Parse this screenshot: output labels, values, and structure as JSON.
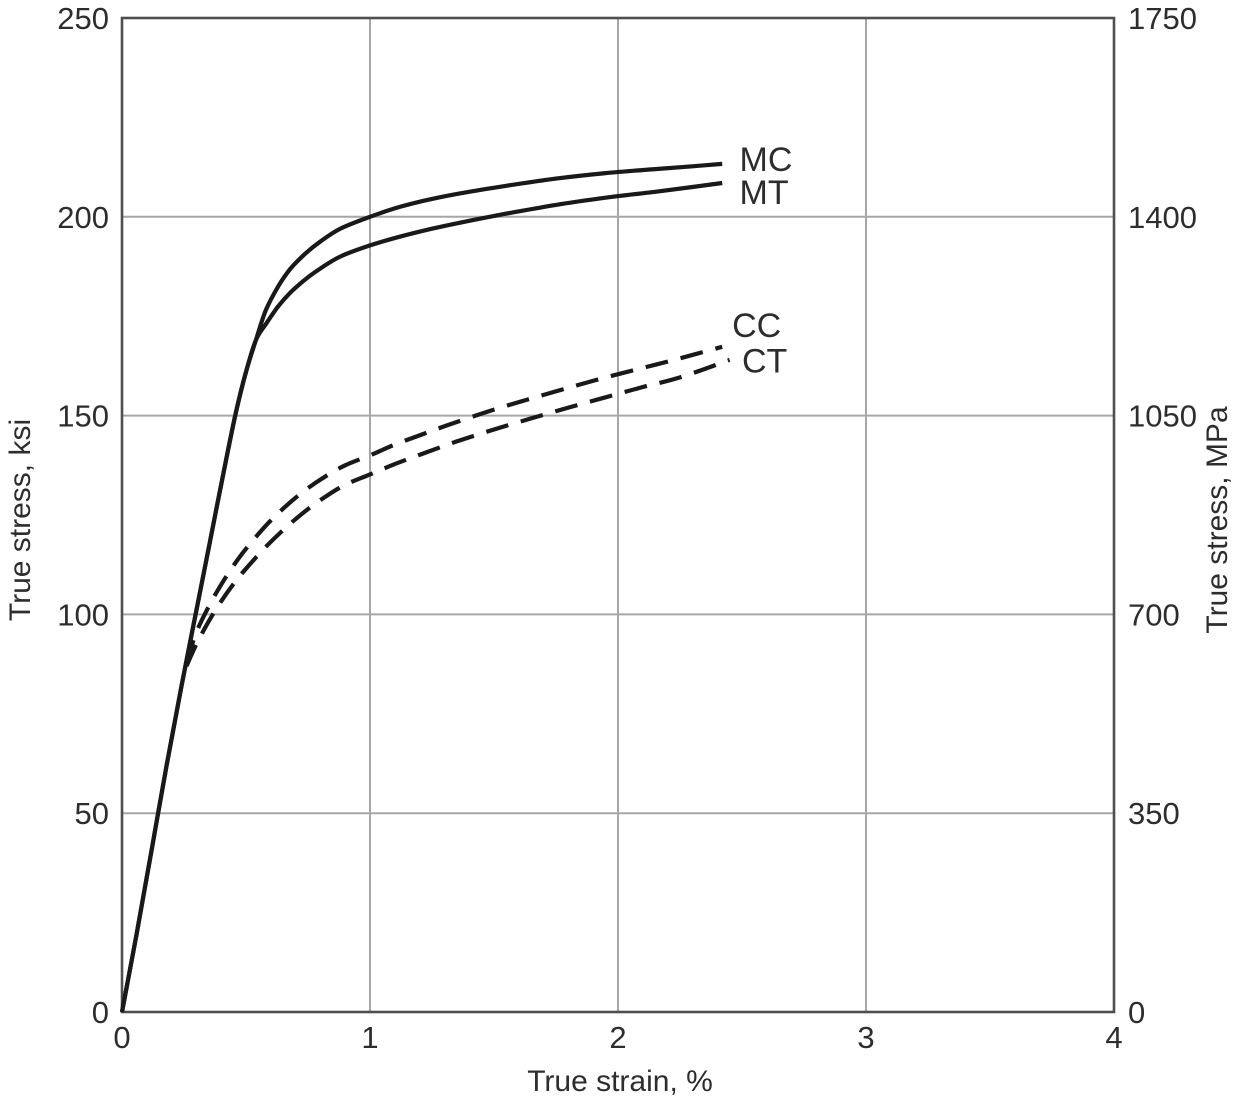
{
  "figure": {
    "background": "#ffffff",
    "curve_color": "#191919",
    "grid_color": "#a6a6a6",
    "axis_color": "#4f4f4f",
    "text_color": "#2d2d2d"
  },
  "chart_data": {
    "type": "line",
    "title": "",
    "xlabel": "True strain, %",
    "ylabel_left": "True stress, ksi",
    "ylabel_right": "True stress, MPa",
    "xlim": [
      0,
      4
    ],
    "ylim_left": [
      0,
      250
    ],
    "ylim_right": [
      0,
      1750
    ],
    "x_ticks": [
      0,
      1,
      2,
      3,
      4
    ],
    "y_ticks_left": [
      0,
      50,
      100,
      150,
      200,
      250
    ],
    "y_ticks_right": [
      0,
      350,
      700,
      1050,
      1400,
      1750
    ],
    "grid": true,
    "legend_position": "curve-end-labels",
    "series": [
      {
        "name": "MT",
        "label": "MT",
        "line_style": "solid",
        "label_at": [
          2.49,
          206.2
        ],
        "points": [
          [
            0,
            0
          ],
          [
            0.06,
            20
          ],
          [
            0.12,
            41
          ],
          [
            0.18,
            62
          ],
          [
            0.24,
            82
          ],
          [
            0.3,
            101
          ],
          [
            0.36,
            120
          ],
          [
            0.42,
            139
          ],
          [
            0.46,
            151
          ],
          [
            0.5,
            161
          ],
          [
            0.54,
            169
          ],
          [
            0.58,
            173
          ],
          [
            0.63,
            177.5
          ],
          [
            0.68,
            181
          ],
          [
            0.74,
            184.3
          ],
          [
            0.8,
            187
          ],
          [
            0.88,
            190
          ],
          [
            1.0,
            192.8
          ],
          [
            1.12,
            195
          ],
          [
            1.25,
            197
          ],
          [
            1.4,
            199
          ],
          [
            1.55,
            200.8
          ],
          [
            1.75,
            203
          ],
          [
            1.95,
            204.8
          ],
          [
            2.15,
            206.3
          ],
          [
            2.3,
            207.5
          ],
          [
            2.42,
            208.5
          ]
        ]
      },
      {
        "name": "MC",
        "label": "MC",
        "line_style": "solid",
        "label_at": [
          2.49,
          214.6
        ],
        "points": [
          [
            0,
            0
          ],
          [
            0.06,
            20
          ],
          [
            0.12,
            41
          ],
          [
            0.18,
            62
          ],
          [
            0.24,
            82
          ],
          [
            0.3,
            101
          ],
          [
            0.36,
            120
          ],
          [
            0.42,
            139
          ],
          [
            0.46,
            151
          ],
          [
            0.5,
            161
          ],
          [
            0.54,
            169
          ],
          [
            0.58,
            176.5
          ],
          [
            0.63,
            182.5
          ],
          [
            0.68,
            187
          ],
          [
            0.74,
            190.8
          ],
          [
            0.8,
            193.8
          ],
          [
            0.88,
            197
          ],
          [
            1.0,
            200
          ],
          [
            1.12,
            202.5
          ],
          [
            1.25,
            204.5
          ],
          [
            1.4,
            206.3
          ],
          [
            1.55,
            207.8
          ],
          [
            1.75,
            209.6
          ],
          [
            1.95,
            211
          ],
          [
            2.15,
            212
          ],
          [
            2.3,
            212.7
          ],
          [
            2.42,
            213.3
          ]
        ]
      },
      {
        "name": "CT",
        "label": "CT",
        "line_style": "dashed",
        "label_at": [
          2.5,
          163.8
        ],
        "points": [
          [
            0.26,
            87
          ],
          [
            0.3,
            92.5
          ],
          [
            0.35,
            98.3
          ],
          [
            0.4,
            103.3
          ],
          [
            0.45,
            107.7
          ],
          [
            0.5,
            111.5
          ],
          [
            0.58,
            117
          ],
          [
            0.66,
            121.8
          ],
          [
            0.74,
            126
          ],
          [
            0.82,
            129.6
          ],
          [
            0.9,
            132.6
          ],
          [
            1.0,
            135.2
          ],
          [
            1.1,
            137.8
          ],
          [
            1.22,
            140.6
          ],
          [
            1.35,
            143.5
          ],
          [
            1.5,
            146.5
          ],
          [
            1.65,
            149.3
          ],
          [
            1.8,
            152
          ],
          [
            1.95,
            154.6
          ],
          [
            2.1,
            157.2
          ],
          [
            2.25,
            159.6
          ],
          [
            2.45,
            164
          ]
        ]
      },
      {
        "name": "CC",
        "label": "CC",
        "line_style": "dashed",
        "label_at": [
          2.46,
          172.8
        ],
        "points": [
          [
            0.26,
            88
          ],
          [
            0.3,
            95.5
          ],
          [
            0.35,
            102
          ],
          [
            0.4,
            107.5
          ],
          [
            0.45,
            112.3
          ],
          [
            0.5,
            116.5
          ],
          [
            0.58,
            122.3
          ],
          [
            0.66,
            127.2
          ],
          [
            0.74,
            131.3
          ],
          [
            0.82,
            134.7
          ],
          [
            0.9,
            137.5
          ],
          [
            1.0,
            140
          ],
          [
            1.1,
            142.7
          ],
          [
            1.22,
            145.5
          ],
          [
            1.35,
            148.4
          ],
          [
            1.5,
            151.5
          ],
          [
            1.65,
            154.3
          ],
          [
            1.8,
            157
          ],
          [
            1.95,
            159.6
          ],
          [
            2.1,
            162
          ],
          [
            2.25,
            164.4
          ],
          [
            2.42,
            167.3
          ]
        ]
      }
    ]
  }
}
